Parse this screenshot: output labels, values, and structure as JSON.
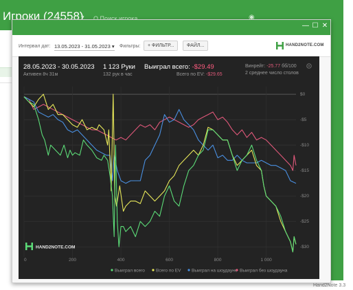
{
  "background": {
    "title": "Игроки (24558)",
    "search_hint": "Q  Поиск игрока...",
    "version": "Hand2Note 3.3"
  },
  "window_buttons": {
    "minimize": "—",
    "maximize": "☐",
    "close": "✕"
  },
  "toolbar": {
    "date_interval_label": "Интервал дат:",
    "date_interval_value": "13.05.2023 - 31.05.2023 ▾",
    "filters_label": "Фильтры:",
    "filter_button": "+ ФИЛЬТР...",
    "file_button": "ФАЙЛ...",
    "logo_text": "HAND2NOTE.COM"
  },
  "stats": {
    "period": "28.05.2023 - 30.05.2023",
    "active": "Активен 8ч 31м",
    "hands": "1 123 Руки",
    "hands_per_hour": "132 рук в час",
    "won_total_label": "Выиграл всего:",
    "won_total_value": "-$29.49",
    "ev_label": "Всего по EV:",
    "ev_value": "-$29.65",
    "winrate_label": "Винрейт:",
    "winrate_value": "-25.77",
    "winrate_unit": "бб/100",
    "avg_tables": "2 среднее число столов"
  },
  "colors": {
    "accent_green": "#3fa044",
    "panel_bg": "#232323",
    "won_total": "#5cdc78",
    "won_ev": "#e8e85a",
    "won_showdown": "#4a90e2",
    "won_non_showdown": "#e0587a",
    "negative": "#ff5c80"
  },
  "chart_data": {
    "type": "line",
    "xlim": [
      0,
      1123
    ],
    "ylim": [
      -32,
      1.5
    ],
    "x_ticks": [
      0,
      200,
      400,
      600,
      800,
      1000
    ],
    "x_tick_labels": [
      "0",
      "200",
      "400",
      "600",
      "800",
      "1 000"
    ],
    "y_ticks": [
      0,
      -5,
      -10,
      -15,
      -20,
      -25,
      -30
    ],
    "y_tick_labels": [
      "$0",
      "-$5",
      "-$10",
      "-$15",
      "-$20",
      "-$25",
      "-$30"
    ],
    "grid": true,
    "legend_position": "bottom-right",
    "watermark": "HAND2NOTE.COM",
    "series": [
      {
        "name": "Выиграл всего",
        "color": "#5cdc78",
        "points": [
          [
            0,
            -0.5
          ],
          [
            20,
            -1.5
          ],
          [
            40,
            -2
          ],
          [
            60,
            -5
          ],
          [
            75,
            -8
          ],
          [
            85,
            -9
          ],
          [
            100,
            -12
          ],
          [
            110,
            -10
          ],
          [
            130,
            -11
          ],
          [
            150,
            -12
          ],
          [
            165,
            -10
          ],
          [
            180,
            -12.5
          ],
          [
            190,
            -11
          ],
          [
            200,
            -12
          ],
          [
            210,
            -11.5
          ],
          [
            230,
            -12
          ],
          [
            245,
            -9
          ],
          [
            260,
            -10
          ],
          [
            280,
            -11
          ],
          [
            300,
            -12.5
          ],
          [
            320,
            -13
          ],
          [
            330,
            -12
          ],
          [
            345,
            -13
          ],
          [
            355,
            -16
          ],
          [
            365,
            -20
          ],
          [
            372,
            -28
          ],
          [
            378,
            -10
          ],
          [
            385,
            -25
          ],
          [
            392,
            -30
          ],
          [
            400,
            -26
          ],
          [
            410,
            -26
          ],
          [
            420,
            -27
          ],
          [
            440,
            -26
          ],
          [
            460,
            -28
          ],
          [
            480,
            -25
          ],
          [
            500,
            -26
          ],
          [
            520,
            -25
          ],
          [
            540,
            -23
          ],
          [
            560,
            -24
          ],
          [
            580,
            -20
          ],
          [
            600,
            -18
          ],
          [
            620,
            -21
          ],
          [
            640,
            -22
          ],
          [
            660,
            -18
          ],
          [
            680,
            -15
          ],
          [
            700,
            -14
          ],
          [
            720,
            -12
          ],
          [
            740,
            -11
          ],
          [
            760,
            -7
          ],
          [
            780,
            -7
          ],
          [
            800,
            -8
          ],
          [
            820,
            -9
          ],
          [
            840,
            -9
          ],
          [
            860,
            -12
          ],
          [
            880,
            -15
          ],
          [
            900,
            -13
          ],
          [
            920,
            -12
          ],
          [
            940,
            -10
          ],
          [
            960,
            -13
          ],
          [
            980,
            -15
          ],
          [
            990,
            -18
          ],
          [
            1000,
            -20
          ],
          [
            1020,
            -21
          ],
          [
            1040,
            -22
          ],
          [
            1060,
            -24
          ],
          [
            1080,
            -27
          ],
          [
            1100,
            -29
          ],
          [
            1110,
            -31
          ],
          [
            1115,
            -28
          ],
          [
            1123,
            -29.5
          ]
        ]
      },
      {
        "name": "Всего по EV",
        "color": "#e8e85a",
        "points": [
          [
            0,
            -0.5
          ],
          [
            20,
            -1.5
          ],
          [
            40,
            -2.5
          ],
          [
            60,
            -1
          ],
          [
            80,
            0
          ],
          [
            100,
            -3
          ],
          [
            120,
            -2
          ],
          [
            140,
            -4
          ],
          [
            160,
            -4
          ],
          [
            180,
            -5
          ],
          [
            200,
            -6
          ],
          [
            220,
            -6.5
          ],
          [
            240,
            -5
          ],
          [
            260,
            -7
          ],
          [
            280,
            -6.5
          ],
          [
            300,
            -7
          ],
          [
            310,
            -6
          ],
          [
            330,
            -7
          ],
          [
            345,
            -10
          ],
          [
            350,
            -7
          ],
          [
            360,
            -19
          ],
          [
            368,
            0
          ],
          [
            375,
            -20
          ],
          [
            382,
            -22
          ],
          [
            395,
            -18
          ],
          [
            410,
            -23
          ],
          [
            420,
            -22
          ],
          [
            440,
            -21
          ],
          [
            460,
            -21
          ],
          [
            480,
            -21.5
          ],
          [
            500,
            -19
          ],
          [
            520,
            -20
          ],
          [
            540,
            -21
          ],
          [
            560,
            -20
          ],
          [
            580,
            -19
          ],
          [
            600,
            -17
          ],
          [
            620,
            -16
          ],
          [
            640,
            -14
          ],
          [
            660,
            -13
          ],
          [
            680,
            -12
          ],
          [
            700,
            -11
          ],
          [
            720,
            -12
          ],
          [
            740,
            -10
          ],
          [
            760,
            -6.5
          ],
          [
            780,
            -7
          ],
          [
            800,
            -8
          ],
          [
            820,
            -9
          ],
          [
            840,
            -9
          ],
          [
            860,
            -12
          ],
          [
            880,
            -14
          ],
          [
            900,
            -13
          ],
          [
            920,
            -12
          ],
          [
            940,
            -11
          ],
          [
            960,
            -14
          ],
          [
            980,
            -15
          ],
          [
            990,
            -18
          ],
          [
            1000,
            -20
          ],
          [
            1020,
            -21
          ],
          [
            1040,
            -22
          ],
          [
            1060,
            -25
          ],
          [
            1080,
            -27
          ],
          [
            1100,
            -29
          ],
          [
            1110,
            -31
          ],
          [
            1115,
            -28
          ],
          [
            1123,
            -29.5
          ]
        ]
      },
      {
        "name": "Выиграл на шоудауне",
        "color": "#4a90e2",
        "points": [
          [
            0,
            -0.5
          ],
          [
            20,
            -1
          ],
          [
            40,
            -1.5
          ],
          [
            60,
            -3.5
          ],
          [
            80,
            -4
          ],
          [
            100,
            -4.5
          ],
          [
            120,
            -4
          ],
          [
            140,
            -5
          ],
          [
            160,
            -5.5
          ],
          [
            180,
            -7
          ],
          [
            200,
            -7.5
          ],
          [
            220,
            -7
          ],
          [
            240,
            -8
          ],
          [
            260,
            -9
          ],
          [
            280,
            -10
          ],
          [
            300,
            -11
          ],
          [
            320,
            -11.5
          ],
          [
            340,
            -12
          ],
          [
            355,
            -12
          ],
          [
            365,
            -17
          ],
          [
            372,
            -12
          ],
          [
            385,
            -15
          ],
          [
            400,
            -17
          ],
          [
            420,
            -17.5
          ],
          [
            440,
            -17
          ],
          [
            460,
            -17
          ],
          [
            480,
            -17
          ],
          [
            500,
            -13
          ],
          [
            520,
            -12
          ],
          [
            540,
            -10
          ],
          [
            560,
            -8
          ],
          [
            580,
            -4
          ],
          [
            600,
            -5.5
          ],
          [
            620,
            -5
          ],
          [
            640,
            -3
          ],
          [
            660,
            -5
          ],
          [
            680,
            -6
          ],
          [
            700,
            -7
          ],
          [
            720,
            -9
          ],
          [
            740,
            -10
          ],
          [
            760,
            -11
          ],
          [
            780,
            -10
          ],
          [
            800,
            -12.5
          ],
          [
            820,
            -12
          ],
          [
            840,
            -13
          ],
          [
            860,
            -13
          ],
          [
            880,
            -12
          ],
          [
            900,
            -13
          ],
          [
            920,
            -13.5
          ],
          [
            940,
            -13.5
          ],
          [
            960,
            -13.5
          ],
          [
            980,
            -13
          ],
          [
            1000,
            -13.5
          ],
          [
            1020,
            -14
          ],
          [
            1040,
            -14
          ],
          [
            1060,
            -14.5
          ],
          [
            1080,
            -15
          ],
          [
            1100,
            -17
          ],
          [
            1123,
            -17.5
          ]
        ]
      },
      {
        "name": "Выиграл без шоудауна",
        "color": "#e0587a",
        "points": [
          [
            0,
            -0.5
          ],
          [
            20,
            -1
          ],
          [
            40,
            -3
          ],
          [
            60,
            -2.5
          ],
          [
            80,
            -2
          ],
          [
            100,
            -2.5
          ],
          [
            120,
            -3
          ],
          [
            140,
            -3.5
          ],
          [
            160,
            -4
          ],
          [
            180,
            -4.5
          ],
          [
            200,
            -5
          ],
          [
            220,
            -5.5
          ],
          [
            240,
            -6
          ],
          [
            260,
            -6.5
          ],
          [
            280,
            -7
          ],
          [
            300,
            -7
          ],
          [
            320,
            -7.5
          ],
          [
            340,
            -8
          ],
          [
            360,
            -8.5
          ],
          [
            380,
            -9
          ],
          [
            400,
            -8.5
          ],
          [
            420,
            -9
          ],
          [
            440,
            -8
          ],
          [
            460,
            -7
          ],
          [
            480,
            -6
          ],
          [
            500,
            -6.5
          ],
          [
            520,
            -6
          ],
          [
            540,
            -7
          ],
          [
            560,
            -5.5
          ],
          [
            580,
            -5
          ],
          [
            600,
            -4.5
          ],
          [
            620,
            -5
          ],
          [
            640,
            -5.5
          ],
          [
            660,
            -6
          ],
          [
            680,
            -6.5
          ],
          [
            700,
            -6
          ],
          [
            720,
            -5
          ],
          [
            740,
            -4.5
          ],
          [
            760,
            -4
          ],
          [
            780,
            -3.5
          ],
          [
            800,
            -5
          ],
          [
            820,
            -4.5
          ],
          [
            840,
            -5.5
          ],
          [
            860,
            -7
          ],
          [
            880,
            -8
          ],
          [
            900,
            -7
          ],
          [
            920,
            -8.5
          ],
          [
            940,
            -7.5
          ],
          [
            960,
            -9
          ],
          [
            980,
            -8.5
          ],
          [
            1000,
            -9
          ],
          [
            1020,
            -10
          ],
          [
            1040,
            -11
          ],
          [
            1060,
            -12
          ],
          [
            1080,
            -13
          ],
          [
            1100,
            -14
          ],
          [
            1110,
            -15
          ],
          [
            1115,
            -12
          ],
          [
            1123,
            -14
          ]
        ]
      }
    ]
  }
}
